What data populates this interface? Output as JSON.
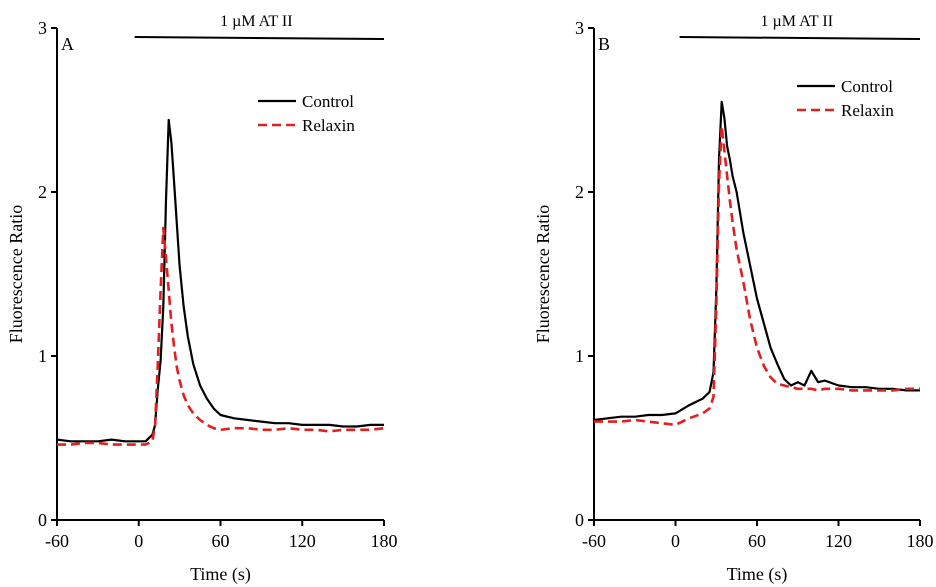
{
  "chart_data": [
    {
      "type": "line",
      "panel_label": "A",
      "treatment_label": "1 µM AT II",
      "treatment_start": -3,
      "xlabel": "Time (s)",
      "ylabel": "Fluorescence Ratio",
      "xlim": [
        -60,
        180
      ],
      "ylim": [
        0,
        3
      ],
      "xticks": [
        -60,
        0,
        60,
        120,
        180
      ],
      "yticks": [
        0,
        1,
        2,
        3
      ],
      "grid": false,
      "legend_position": "top-right",
      "series": [
        {
          "name": "Control",
          "color": "#000000",
          "dash": "solid",
          "x": [
            -60,
            -50,
            -40,
            -30,
            -20,
            -10,
            0,
            5,
            10,
            12,
            14,
            16,
            18,
            20,
            22,
            24,
            26,
            28,
            30,
            33,
            36,
            40,
            45,
            50,
            55,
            60,
            70,
            80,
            90,
            100,
            110,
            120,
            130,
            140,
            150,
            160,
            170,
            180
          ],
          "y": [
            0.49,
            0.48,
            0.48,
            0.48,
            0.49,
            0.48,
            0.48,
            0.48,
            0.52,
            0.58,
            0.8,
            0.97,
            1.3,
            1.95,
            2.44,
            2.3,
            2.05,
            1.8,
            1.55,
            1.3,
            1.12,
            0.95,
            0.82,
            0.74,
            0.68,
            0.64,
            0.62,
            0.61,
            0.6,
            0.59,
            0.59,
            0.58,
            0.58,
            0.58,
            0.57,
            0.57,
            0.58,
            0.58
          ]
        },
        {
          "name": "Relaxin",
          "color": "#e02020",
          "dash": "dashed",
          "x": [
            -60,
            -50,
            -40,
            -30,
            -20,
            -10,
            0,
            5,
            10,
            12,
            14,
            16,
            18,
            20,
            22,
            24,
            26,
            28,
            30,
            33,
            36,
            40,
            45,
            50,
            55,
            60,
            70,
            80,
            90,
            100,
            110,
            120,
            130,
            140,
            150,
            160,
            170,
            180
          ],
          "y": [
            0.46,
            0.46,
            0.47,
            0.47,
            0.46,
            0.46,
            0.46,
            0.46,
            0.48,
            0.58,
            0.95,
            1.4,
            1.78,
            1.6,
            1.4,
            1.2,
            1.05,
            0.93,
            0.85,
            0.76,
            0.7,
            0.65,
            0.61,
            0.58,
            0.56,
            0.55,
            0.56,
            0.56,
            0.55,
            0.55,
            0.56,
            0.55,
            0.55,
            0.54,
            0.55,
            0.55,
            0.55,
            0.56
          ]
        }
      ]
    },
    {
      "type": "line",
      "panel_label": "B",
      "treatment_label": "1 µM AT II",
      "treatment_start": 3,
      "xlabel": "Time (s)",
      "ylabel": "Fluorescence Ratio",
      "xlim": [
        -60,
        180
      ],
      "ylim": [
        0,
        3
      ],
      "xticks": [
        -60,
        0,
        60,
        120,
        180
      ],
      "yticks": [
        0,
        1,
        2,
        3
      ],
      "grid": false,
      "legend_position": "top-right",
      "series": [
        {
          "name": "Control",
          "color": "#000000",
          "dash": "solid",
          "x": [
            -60,
            -50,
            -40,
            -30,
            -20,
            -10,
            0,
            10,
            20,
            25,
            28,
            30,
            32,
            34,
            36,
            38,
            40,
            42,
            45,
            50,
            55,
            60,
            65,
            70,
            75,
            80,
            85,
            90,
            95,
            100,
            105,
            110,
            120,
            130,
            140,
            150,
            160,
            170,
            180
          ],
          "y": [
            0.61,
            0.62,
            0.63,
            0.63,
            0.64,
            0.64,
            0.65,
            0.7,
            0.74,
            0.78,
            0.9,
            1.4,
            2.2,
            2.55,
            2.45,
            2.28,
            2.2,
            2.1,
            2.0,
            1.75,
            1.55,
            1.35,
            1.2,
            1.05,
            0.95,
            0.86,
            0.82,
            0.84,
            0.82,
            0.91,
            0.84,
            0.85,
            0.82,
            0.81,
            0.81,
            0.8,
            0.8,
            0.79,
            0.79
          ]
        },
        {
          "name": "Relaxin",
          "color": "#e02020",
          "dash": "dashed",
          "x": [
            -60,
            -50,
            -40,
            -30,
            -20,
            -10,
            0,
            10,
            20,
            25,
            28,
            30,
            32,
            34,
            36,
            38,
            40,
            42,
            45,
            50,
            55,
            60,
            65,
            70,
            75,
            80,
            85,
            90,
            95,
            100,
            105,
            110,
            120,
            130,
            140,
            150,
            160,
            170,
            180
          ],
          "y": [
            0.6,
            0.6,
            0.6,
            0.61,
            0.6,
            0.59,
            0.58,
            0.62,
            0.65,
            0.68,
            0.75,
            1.3,
            2.05,
            2.4,
            2.25,
            2.1,
            1.95,
            1.82,
            1.65,
            1.45,
            1.22,
            1.05,
            0.94,
            0.87,
            0.83,
            0.82,
            0.81,
            0.8,
            0.8,
            0.8,
            0.79,
            0.8,
            0.8,
            0.79,
            0.79,
            0.79,
            0.79,
            0.8,
            0.8
          ]
        }
      ]
    }
  ]
}
